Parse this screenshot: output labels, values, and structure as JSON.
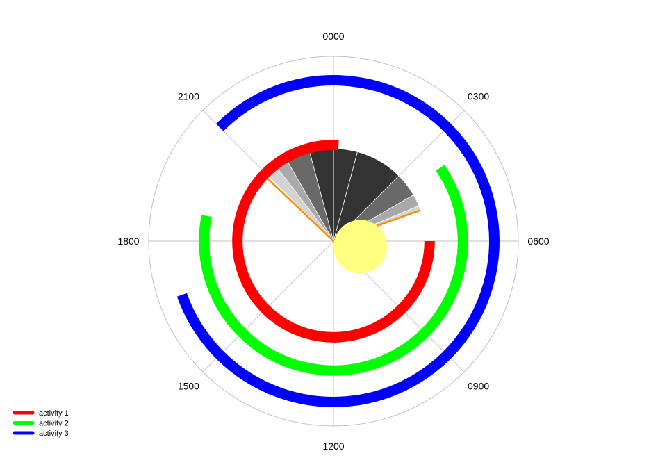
{
  "chart_data": {
    "type": "polar-activity-clock",
    "title": "",
    "axis": {
      "unit": "hours",
      "range": [
        0,
        24
      ],
      "direction": "clockwise",
      "tick_labels": [
        {
          "hour": 6,
          "label": "0600"
        },
        {
          "hour": 9,
          "label": "0900"
        },
        {
          "hour": 12,
          "label": "1200"
        },
        {
          "hour": 15,
          "label": "1500"
        },
        {
          "hour": 18,
          "label": "1800"
        },
        {
          "hour": 21,
          "label": "2100"
        },
        {
          "hour": 0,
          "label": "0000"
        },
        {
          "hour": 3,
          "label": "0300"
        }
      ]
    },
    "grid": true,
    "daylight": {
      "color": "#FFFF80",
      "radius_fraction": 0.29
    },
    "night_shading": [
      {
        "start": 4.5,
        "end": 4.7,
        "color": "#D3D3D3"
      },
      {
        "start": 4.0,
        "end": 4.5,
        "color": "#A9A9A9"
      },
      {
        "start": 3.0,
        "end": 4.0,
        "color": "#696969"
      },
      {
        "start": 1.0,
        "end": 3.0,
        "color": "#333333"
      },
      {
        "start": 0.0,
        "end": 1.0,
        "color": "#333333"
      },
      {
        "start": 23.0,
        "end": 24.0,
        "color": "#333333"
      },
      {
        "start": 22.0,
        "end": 23.0,
        "color": "#696969"
      },
      {
        "start": 21.5,
        "end": 22.0,
        "color": "#A9A9A9"
      },
      {
        "start": 21.0,
        "end": 21.5,
        "color": "#D3D3D3"
      }
    ],
    "twilight_lines": [
      {
        "hour": 4.7,
        "color": "#FF8C00"
      },
      {
        "hour": 20.9,
        "color": "#FF8C00"
      }
    ],
    "series": [
      {
        "name": "activity 1",
        "color": "#FF0000",
        "start": 6.0,
        "end": 0.2,
        "radius_fraction": 0.52
      },
      {
        "name": "activity 2",
        "color": "#00FF00",
        "start": 3.7,
        "end": 18.75,
        "radius_fraction": 0.7
      },
      {
        "name": "activity 3",
        "color": "#0000FF",
        "start": 21.0,
        "end": 16.7,
        "radius_fraction": 0.87
      }
    ],
    "legend": {
      "position": "bottom-left"
    }
  }
}
